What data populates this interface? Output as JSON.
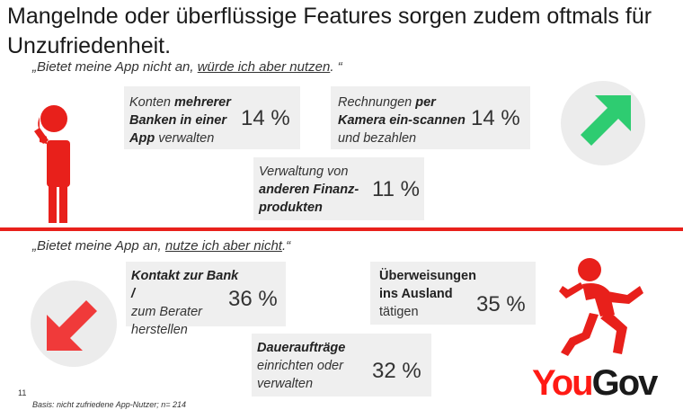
{
  "title": "Mangelnde oder überflüssige Features sorgen zudem oftmals für Unzufriedenheit.",
  "top_section": {
    "quote_pre": "„Bietet meine App nicht an, ",
    "quote_u": "würde ich aber nutzen",
    "quote_post": ". “",
    "items": [
      {
        "line1_pre": "Konten ",
        "line1_bold": "mehrerer",
        "line2": "Banken in einer",
        "line3_bold": "App",
        "line3_post": " verwalten",
        "percent": "14 %"
      },
      {
        "line1_pre": "Rechnungen ",
        "line1_bold": "per",
        "line2": "Kamera ein-scannen",
        "line3_post": "und bezahlen",
        "percent": "14 %"
      },
      {
        "line1_pre": "Verwaltung von",
        "line2": "anderen Finanz-",
        "line3_bold": "produkten",
        "percent": "11 %"
      }
    ]
  },
  "bottom_section": {
    "quote_pre": "„Bietet meine App an, ",
    "quote_u": "nutze ich aber nicht",
    "quote_post": ".“",
    "items": [
      {
        "line1_bold": "Kontakt zur Bank /",
        "line2": "zum Berater",
        "line3": "herstellen",
        "percent": "36 %"
      },
      {
        "line1_bold": "Überweisungen",
        "line2_bold": "ins Ausland",
        "line3": " tätigen",
        "percent": "35 %"
      },
      {
        "line1_bold": "Daueraufträge",
        "line2": "einrichten oder",
        "line3": "verwalten",
        "percent": "32 %"
      }
    ]
  },
  "footer": {
    "page_number": "11",
    "basis": "Basis: nicht zufriedene App-Nutzer; n= 214"
  },
  "logo": {
    "part1": "You",
    "part2": "Gov"
  },
  "icons": {
    "thinking_person": "thinking-person-icon",
    "up_arrow": "arrow-up-right-icon",
    "down_arrow": "arrow-down-left-icon",
    "running_person": "running-person-icon"
  },
  "colors": {
    "accent_red": "#e8201b",
    "arrow_green": "#2ecc71",
    "arrow_red": "#f03a3a",
    "box_gray": "#efefef"
  }
}
